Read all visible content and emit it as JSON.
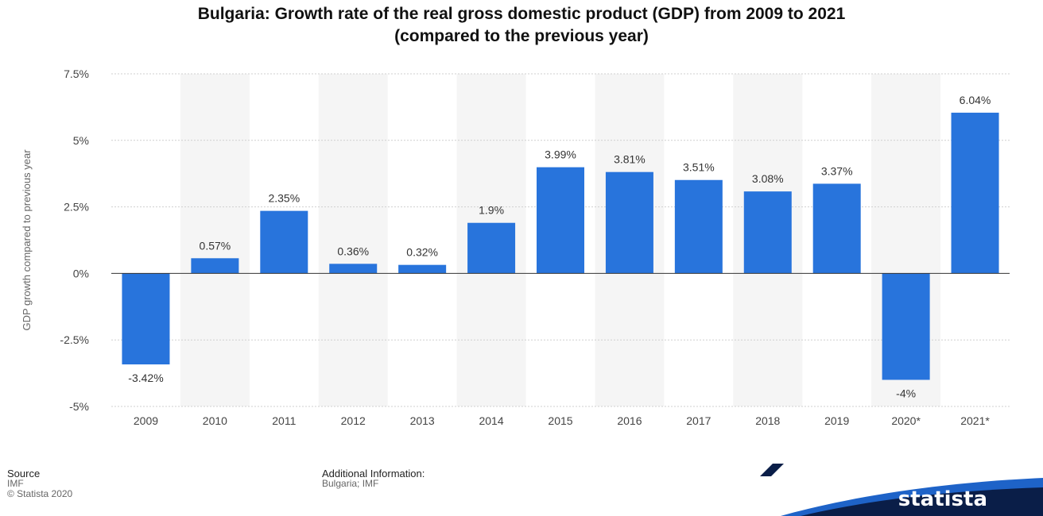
{
  "chart_data": {
    "type": "bar",
    "title_line1": "Bulgaria: Growth rate of the real gross domestic product (GDP) from 2009 to 2021",
    "title_line2": "(compared to the previous year)",
    "xlabel": "",
    "ylabel": "GDP growth compared to previous year",
    "categories": [
      "2009",
      "2010",
      "2011",
      "2012",
      "2013",
      "2014",
      "2015",
      "2016",
      "2017",
      "2018",
      "2019",
      "2020*",
      "2021*"
    ],
    "values": [
      -3.42,
      0.57,
      2.35,
      0.36,
      0.32,
      1.9,
      3.99,
      3.81,
      3.51,
      3.08,
      3.37,
      -4,
      6.04
    ],
    "value_labels": [
      "-3.42%",
      "0.57%",
      "2.35%",
      "0.36%",
      "0.32%",
      "1.9%",
      "3.99%",
      "3.81%",
      "3.51%",
      "3.08%",
      "3.37%",
      "-4%",
      "6.04%"
    ],
    "ylim": [
      -5,
      7.5
    ],
    "yticks": [
      7.5,
      5,
      2.5,
      0,
      -2.5,
      -5
    ],
    "ytick_labels": [
      "7.5%",
      "5%",
      "2.5%",
      "0%",
      "-2.5%",
      "-5%"
    ],
    "grid": true,
    "legend": "none",
    "bar_color": "#2874dc"
  },
  "footer": {
    "source_heading": "Source",
    "source_line1": "IMF",
    "source_line2": "© Statista 2020",
    "info_heading": "Additional Information:",
    "info_line1": "Bulgaria; IMF"
  },
  "brand": {
    "name": "statista",
    "logo_icon": "statista-logo-icon",
    "color": "#0a1e48",
    "accent": "#1e63c8"
  }
}
